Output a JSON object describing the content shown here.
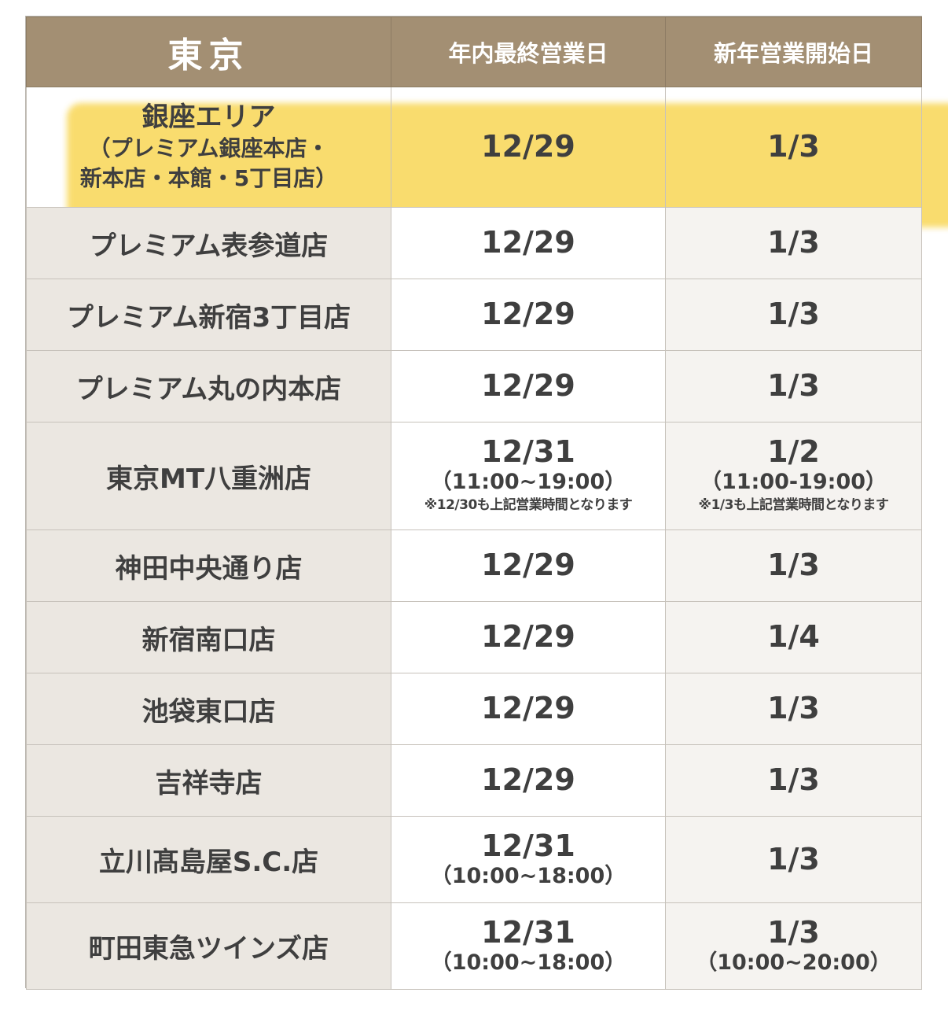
{
  "header": {
    "region": "東京",
    "col_last": "年内最終営業日",
    "col_first": "新年営業開始日"
  },
  "rows": [
    {
      "store": "銀座エリア",
      "store_sub1": "（プレミアム銀座本店・",
      "store_sub2": "新本店・本館・5丁目店）",
      "last": "12/29",
      "first": "1/3",
      "highlighted": true
    },
    {
      "store": "プレミアム表参道店",
      "last": "12/29",
      "first": "1/3"
    },
    {
      "store": "プレミアム新宿3丁目店",
      "last": "12/29",
      "first": "1/3"
    },
    {
      "store": "プレミアム丸の内本店",
      "last": "12/29",
      "first": "1/3"
    },
    {
      "store": "東京MT八重洲店",
      "last": "12/31",
      "last_hours": "（11:00~19:00）",
      "last_note": "※12/30も上記営業時間となります",
      "first": "1/2",
      "first_hours": "（11:00-19:00）",
      "first_note": "※1/3も上記営業時間となります"
    },
    {
      "store": "神田中央通り店",
      "last": "12/29",
      "first": "1/3"
    },
    {
      "store": "新宿南口店",
      "last": "12/29",
      "first": "1/4"
    },
    {
      "store": "池袋東口店",
      "last": "12/29",
      "first": "1/3"
    },
    {
      "store": "吉祥寺店",
      "last": "12/29",
      "first": "1/3"
    },
    {
      "store": "立川髙島屋S.C.店",
      "last": "12/31",
      "last_hours": "（10:00~18:00）",
      "first": "1/3"
    },
    {
      "store": "町田東急ツインズ店",
      "last": "12/31",
      "last_hours": "（10:00~18:00）",
      "first": "1/3",
      "first_hours": "（10:00~20:00）"
    }
  ],
  "colors": {
    "header_bg": "#a38f73",
    "store_col_bg": "#ebe7e1",
    "highlight": "#f7cf37"
  }
}
